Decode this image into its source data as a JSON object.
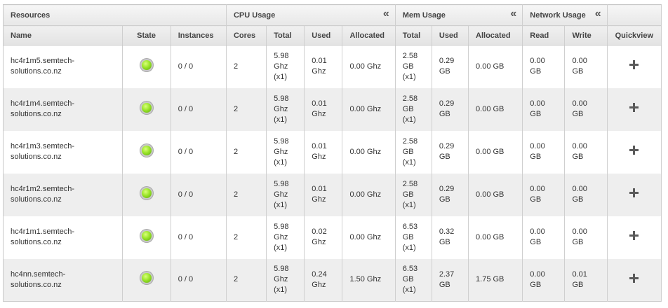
{
  "headers": {
    "groups": {
      "resources": "Resources",
      "cpu": "CPU Usage",
      "mem": "Mem Usage",
      "network": "Network Usage",
      "collapse_icon": "«"
    },
    "columns": {
      "name": "Name",
      "state": "State",
      "instances": "Instances",
      "cores": "Cores",
      "cpu_total": "Total",
      "cpu_used": "Used",
      "cpu_allocated": "Allocated",
      "mem_total": "Total",
      "mem_used": "Used",
      "mem_allocated": "Allocated",
      "read": "Read",
      "write": "Write",
      "quickview": "Quickview"
    }
  },
  "rows": [
    {
      "name_l1": "hc4r1m5.semtech-",
      "name_l2": "solutions.co.nz",
      "state": "running",
      "instances": "0 / 0",
      "cores": "2",
      "cpu_total_l1": "5.98",
      "cpu_total_l2": "Ghz",
      "cpu_total_l3": "(x1)",
      "cpu_used_l1": "0.01",
      "cpu_used_l2": "Ghz",
      "cpu_allocated": "0.00 Ghz",
      "mem_total_l1": "2.58",
      "mem_total_l2": "GB",
      "mem_total_l3": "(x1)",
      "mem_used_l1": "0.29",
      "mem_used_l2": "GB",
      "mem_allocated": "0.00 GB",
      "read_l1": "0.00",
      "read_l2": "GB",
      "write_l1": "0.00",
      "write_l2": "GB"
    },
    {
      "name_l1": "hc4r1m4.semtech-",
      "name_l2": "solutions.co.nz",
      "state": "running",
      "instances": "0 / 0",
      "cores": "2",
      "cpu_total_l1": "5.98",
      "cpu_total_l2": "Ghz",
      "cpu_total_l3": "(x1)",
      "cpu_used_l1": "0.01",
      "cpu_used_l2": "Ghz",
      "cpu_allocated": "0.00 Ghz",
      "mem_total_l1": "2.58",
      "mem_total_l2": "GB",
      "mem_total_l3": "(x1)",
      "mem_used_l1": "0.29",
      "mem_used_l2": "GB",
      "mem_allocated": "0.00 GB",
      "read_l1": "0.00",
      "read_l2": "GB",
      "write_l1": "0.00",
      "write_l2": "GB"
    },
    {
      "name_l1": "hc4r1m3.semtech-",
      "name_l2": "solutions.co.nz",
      "state": "running",
      "instances": "0 / 0",
      "cores": "2",
      "cpu_total_l1": "5.98",
      "cpu_total_l2": "Ghz",
      "cpu_total_l3": "(x1)",
      "cpu_used_l1": "0.01",
      "cpu_used_l2": "Ghz",
      "cpu_allocated": "0.00 Ghz",
      "mem_total_l1": "2.58",
      "mem_total_l2": "GB",
      "mem_total_l3": "(x1)",
      "mem_used_l1": "0.29",
      "mem_used_l2": "GB",
      "mem_allocated": "0.00 GB",
      "read_l1": "0.00",
      "read_l2": "GB",
      "write_l1": "0.00",
      "write_l2": "GB"
    },
    {
      "name_l1": "hc4r1m2.semtech-",
      "name_l2": "solutions.co.nz",
      "state": "running",
      "instances": "0 / 0",
      "cores": "2",
      "cpu_total_l1": "5.98",
      "cpu_total_l2": "Ghz",
      "cpu_total_l3": "(x1)",
      "cpu_used_l1": "0.01",
      "cpu_used_l2": "Ghz",
      "cpu_allocated": "0.00 Ghz",
      "mem_total_l1": "2.58",
      "mem_total_l2": "GB",
      "mem_total_l3": "(x1)",
      "mem_used_l1": "0.29",
      "mem_used_l2": "GB",
      "mem_allocated": "0.00 GB",
      "read_l1": "0.00",
      "read_l2": "GB",
      "write_l1": "0.00",
      "write_l2": "GB"
    },
    {
      "name_l1": "hc4r1m1.semtech-",
      "name_l2": "solutions.co.nz",
      "state": "running",
      "instances": "0 / 0",
      "cores": "2",
      "cpu_total_l1": "5.98",
      "cpu_total_l2": "Ghz",
      "cpu_total_l3": "(x1)",
      "cpu_used_l1": "0.02",
      "cpu_used_l2": "Ghz",
      "cpu_allocated": "0.00 Ghz",
      "mem_total_l1": "6.53",
      "mem_total_l2": "GB",
      "mem_total_l3": "(x1)",
      "mem_used_l1": "0.32",
      "mem_used_l2": "GB",
      "mem_allocated": "0.00 GB",
      "read_l1": "0.00",
      "read_l2": "GB",
      "write_l1": "0.00",
      "write_l2": "GB"
    },
    {
      "name_l1": "hc4nn.semtech-",
      "name_l2": "solutions.co.nz",
      "state": "running",
      "instances": "0 / 0",
      "cores": "2",
      "cpu_total_l1": "5.98",
      "cpu_total_l2": "Ghz",
      "cpu_total_l3": "(x1)",
      "cpu_used_l1": "0.24",
      "cpu_used_l2": "Ghz",
      "cpu_allocated": "1.50 Ghz",
      "mem_total_l1": "6.53",
      "mem_total_l2": "GB",
      "mem_total_l3": "(x1)",
      "mem_used_l1": "2.37",
      "mem_used_l2": "GB",
      "mem_allocated": "1.75 GB",
      "read_l1": "0.00",
      "read_l2": "GB",
      "write_l1": "0.01",
      "write_l2": "GB"
    }
  ],
  "colors": {
    "state_running": "#9be52a",
    "row_alt": "#eeeeee",
    "border": "#cfcfcf",
    "quickview_icon": "#5a5a5a"
  },
  "icons": {
    "state": "status-dot-icon",
    "quickview": "plus-icon",
    "collapse": "double-chevron-left-icon"
  }
}
